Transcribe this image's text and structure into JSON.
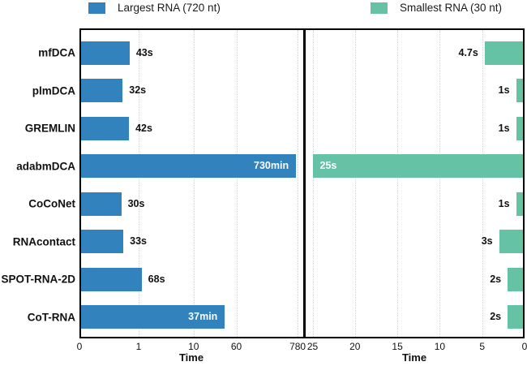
{
  "legend": {
    "items": [
      {
        "label": "Largest RNA (720 nt)",
        "color": "#3182bd"
      },
      {
        "label": "Smallest RNA (30 nt)",
        "color": "#66c2a5"
      }
    ]
  },
  "chart_data": {
    "type": "bar",
    "orientation": "horizontal",
    "grid": true,
    "categories": [
      "mfDCA",
      "plmDCA",
      "GREMLIN",
      "adabmDCA",
      "CoCoNet",
      "RNAcontact",
      "SPOT-RNA-2D",
      "CoT-RNA"
    ],
    "series": [
      {
        "name": "Largest RNA (720 nt)",
        "color": "#3182bd",
        "panel": "left",
        "axis_unit": "minutes",
        "scale": "symlog",
        "values_minutes": [
          0.717,
          0.533,
          0.7,
          730,
          0.5,
          0.55,
          1.133,
          37
        ],
        "labels": [
          "43s",
          "32s",
          "42s",
          "730min",
          "30s",
          "33s",
          "68s",
          "37min"
        ],
        "label_inside": [
          false,
          false,
          false,
          true,
          false,
          false,
          false,
          true
        ]
      },
      {
        "name": "Smallest RNA (30 nt)",
        "color": "#66c2a5",
        "panel": "right",
        "axis_unit": "seconds",
        "scale": "linear-reversed",
        "values_seconds": [
          4.7,
          1,
          1,
          25,
          1,
          3,
          2,
          2
        ],
        "labels": [
          "4.7s",
          "1s",
          "1s",
          "25s",
          "1s",
          "3s",
          "2s",
          "2s"
        ],
        "label_inside": [
          false,
          false,
          false,
          true,
          false,
          false,
          false,
          false
        ]
      }
    ],
    "left_axis": {
      "label": "Time",
      "scale": "symlog",
      "ticks": [
        {
          "value": 0,
          "label": "0"
        },
        {
          "value": 1,
          "label": "1"
        },
        {
          "value": 10,
          "label": "10"
        },
        {
          "value": 60,
          "label": "60"
        },
        {
          "value": 780,
          "label": "780"
        }
      ]
    },
    "right_axis": {
      "label": "Time",
      "scale": "linear",
      "reversed": true,
      "max": 26,
      "ticks": [
        {
          "value": 25,
          "label": "25"
        },
        {
          "value": 20,
          "label": "20"
        },
        {
          "value": 15,
          "label": "15"
        },
        {
          "value": 10,
          "label": "10"
        },
        {
          "value": 5,
          "label": "5"
        },
        {
          "value": 0,
          "label": "0"
        }
      ]
    }
  }
}
